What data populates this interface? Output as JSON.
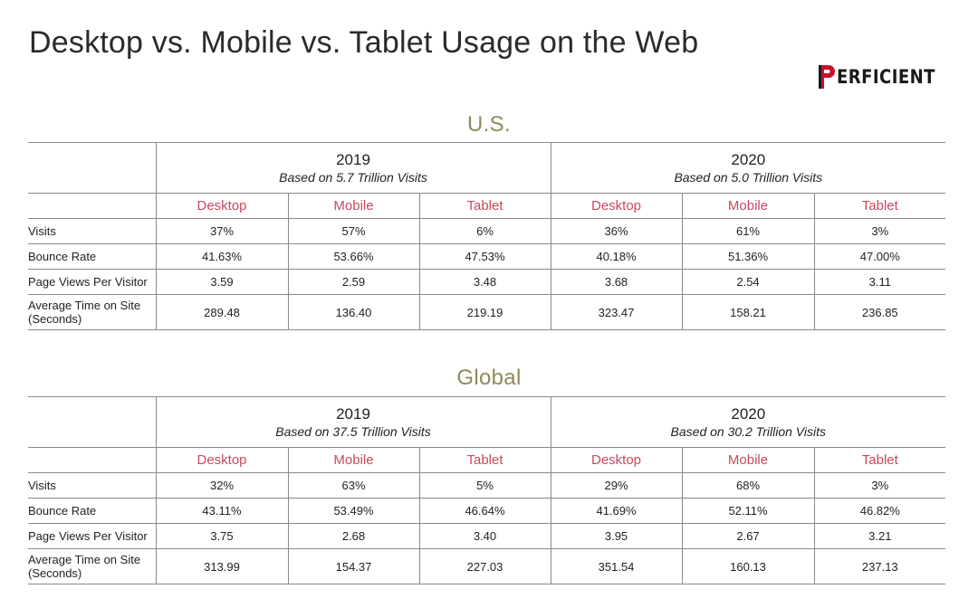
{
  "title": "Desktop vs. Mobile vs. Tablet Usage on the Web",
  "logo": {
    "text": "ERFICIENT",
    "brand": "PERFICIENT",
    "color": "#c8102e"
  },
  "colors": {
    "section_title": "#8e8a5a",
    "device_header": "#c8495e"
  },
  "sections": [
    {
      "title": "U.S.",
      "years": [
        {
          "year": "2019",
          "basis": "Based on 5.7 Trillion Visits"
        },
        {
          "year": "2020",
          "basis": "Based on 5.0 Trillion Visits"
        }
      ],
      "devices": [
        "Desktop",
        "Mobile",
        "Tablet",
        "Desktop",
        "Mobile",
        "Tablet"
      ],
      "rows": [
        {
          "label": "Visits",
          "values": [
            "37%",
            "57%",
            "6%",
            "36%",
            "61%",
            "3%"
          ]
        },
        {
          "label": "Bounce Rate",
          "values": [
            "41.63%",
            "53.66%",
            "47.53%",
            "40.18%",
            "51.36%",
            "47.00%"
          ]
        },
        {
          "label": "Page Views Per Visitor",
          "values": [
            "3.59",
            "2.59",
            "3.48",
            "3.68",
            "2.54",
            "3.11"
          ]
        },
        {
          "label_line1": "Average Time on Site",
          "label_line2": "(Seconds)",
          "values": [
            "289.48",
            "136.40",
            "219.19",
            "323.47",
            "158.21",
            "236.85"
          ]
        }
      ]
    },
    {
      "title": "Global",
      "years": [
        {
          "year": "2019",
          "basis": "Based on 37.5 Trillion Visits"
        },
        {
          "year": "2020",
          "basis": "Based on 30.2 Trillion Visits"
        }
      ],
      "devices": [
        "Desktop",
        "Mobile",
        "Tablet",
        "Desktop",
        "Mobile",
        "Tablet"
      ],
      "rows": [
        {
          "label": "Visits",
          "values": [
            "32%",
            "63%",
            "5%",
            "29%",
            "68%",
            "3%"
          ]
        },
        {
          "label": "Bounce Rate",
          "values": [
            "43.11%",
            "53.49%",
            "46.64%",
            "41.69%",
            "52.11%",
            "46.82%"
          ]
        },
        {
          "label": "Page Views Per Visitor",
          "values": [
            "3.75",
            "2.68",
            "3.40",
            "3.95",
            "2.67",
            "3.21"
          ]
        },
        {
          "label_line1": "Average Time on Site",
          "label_line2": "(Seconds)",
          "values": [
            "313.99",
            "154.37",
            "227.03",
            "351.54",
            "160.13",
            "237.13"
          ]
        }
      ]
    }
  ]
}
